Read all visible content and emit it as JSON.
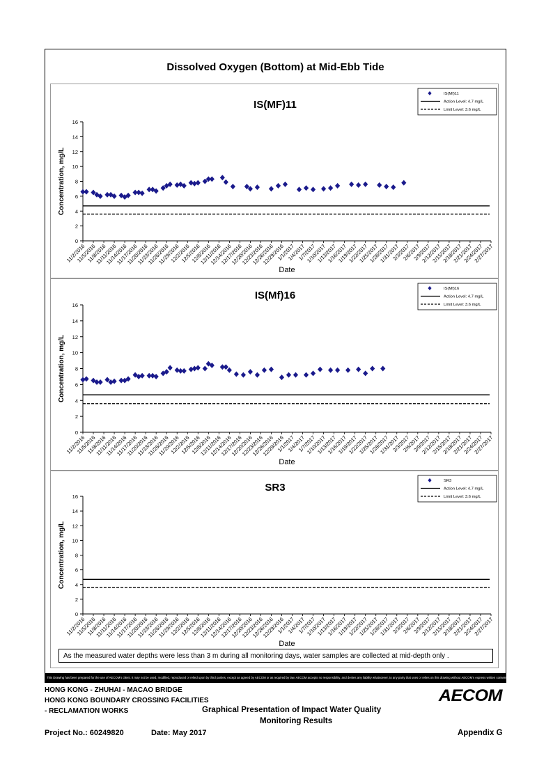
{
  "page": {
    "title": "Dissolved Oxygen (Bottom) at Mid-Ebb Tide",
    "note": "As the measured water depths were less than 3 m during all monitoring days, water samples are collected  at mid-depth only .",
    "disclaimer": "This Drawing has been prepared for the use of AECOM's client. It may not be used, modified, reproduced or relied upon by third parties, except as agreed by AECOM or as required by law. AECOM accepts no responsibility, and denies any liability whatsoever, to any party that uses or relies on this drawing without AECOM's express written consent."
  },
  "footer": {
    "line1": "HONG KONG - ZHUHAI - MACAO BRIDGE",
    "line2": "HONG KONG BOUNDARY CROSSING FACILITIES",
    "line3": "- RECLAMATION WORKS",
    "center1": "Graphical Presentation of Impact Water Quality",
    "center2": "Monitoring Results",
    "project": "Project No.: 60249820",
    "date": "Date: May 2017",
    "appendix": "Appendix G",
    "logo": "AECOM"
  },
  "chart_data": [
    {
      "type": "scatter",
      "title": "IS(MF)11",
      "xlabel": "Date",
      "ylabel": "Concentration, mg/L",
      "ylim": [
        0,
        16
      ],
      "yticks": [
        0,
        2,
        4,
        6,
        8,
        10,
        12,
        14,
        16
      ],
      "xlim": [
        "11/2/2016",
        "2/27/2017"
      ],
      "x_tick_labels": [
        "11/2/2016",
        "11/5/2016",
        "11/8/2016",
        "11/11/2016",
        "11/14/2016",
        "11/17/2016",
        "11/20/2016",
        "11/23/2016",
        "11/26/2016",
        "11/29/2016",
        "12/2/2016",
        "12/5/2016",
        "12/8/2016",
        "12/11/2016",
        "12/14/2016",
        "12/17/2016",
        "12/20/2016",
        "12/23/2016",
        "12/26/2016",
        "12/29/2016",
        "1/1/2017",
        "1/4/2017",
        "1/7/2017",
        "1/10/2017",
        "1/13/2017",
        "1/16/2017",
        "1/19/2017",
        "1/22/2017",
        "1/25/2017",
        "1/28/2017",
        "1/31/2017",
        "2/3/2017",
        "2/6/2017",
        "2/9/2017",
        "2/12/2017",
        "2/15/2017",
        "2/18/2017",
        "2/21/2017",
        "2/24/2017",
        "2/27/2017"
      ],
      "series": [
        {
          "name": "IS(Mf)11",
          "marker": "diamond",
          "color": "#1a1a8c",
          "points": [
            [
              "11/2/2016",
              6.6
            ],
            [
              "11/3/2016",
              6.6
            ],
            [
              "11/5/2016",
              6.5
            ],
            [
              "11/6/2016",
              6.2
            ],
            [
              "11/7/2016",
              6.0
            ],
            [
              "11/9/2016",
              6.2
            ],
            [
              "11/10/2016",
              6.2
            ],
            [
              "11/11/2016",
              6.0
            ],
            [
              "11/13/2016",
              6.1
            ],
            [
              "11/14/2016",
              5.9
            ],
            [
              "11/15/2016",
              6.1
            ],
            [
              "11/17/2016",
              6.5
            ],
            [
              "11/18/2016",
              6.5
            ],
            [
              "11/19/2016",
              6.4
            ],
            [
              "11/21/2016",
              6.9
            ],
            [
              "11/22/2016",
              6.9
            ],
            [
              "11/23/2016",
              6.7
            ],
            [
              "11/25/2016",
              7.1
            ],
            [
              "11/26/2016",
              7.4
            ],
            [
              "11/27/2016",
              7.6
            ],
            [
              "11/29/2016",
              7.5
            ],
            [
              "11/30/2016",
              7.6
            ],
            [
              "12/1/2016",
              7.4
            ],
            [
              "12/3/2016",
              7.8
            ],
            [
              "12/4/2016",
              7.7
            ],
            [
              "12/5/2016",
              7.8
            ],
            [
              "12/7/2016",
              8.0
            ],
            [
              "12/8/2016",
              8.3
            ],
            [
              "12/9/2016",
              8.3
            ],
            [
              "12/12/2016",
              8.5
            ],
            [
              "12/13/2016",
              7.9
            ],
            [
              "12/15/2016",
              7.3
            ],
            [
              "12/19/2016",
              7.3
            ],
            [
              "12/20/2016",
              7.0
            ],
            [
              "12/22/2016",
              7.2
            ],
            [
              "12/26/2016",
              7.0
            ],
            [
              "12/28/2016",
              7.4
            ],
            [
              "12/30/2016",
              7.6
            ],
            [
              "1/3/2017",
              6.9
            ],
            [
              "1/5/2017",
              7.1
            ],
            [
              "1/7/2017",
              6.9
            ],
            [
              "1/10/2017",
              7.0
            ],
            [
              "1/12/2017",
              7.1
            ],
            [
              "1/14/2017",
              7.4
            ],
            [
              "1/18/2017",
              7.6
            ],
            [
              "1/20/2017",
              7.5
            ],
            [
              "1/22/2017",
              7.6
            ],
            [
              "1/26/2017",
              7.5
            ],
            [
              "1/28/2017",
              7.3
            ],
            [
              "1/30/2017",
              7.2
            ],
            [
              "2/2/2017",
              7.8
            ]
          ]
        },
        {
          "name": "Action Level: 4.7 mg/L",
          "style": "solid",
          "value": 4.7
        },
        {
          "name": "Limit Level: 3.6 mg/L",
          "style": "dashed",
          "value": 3.6
        }
      ],
      "legend": "top-right"
    },
    {
      "type": "scatter",
      "title": "IS(Mf)16",
      "xlabel": "Date",
      "ylabel": "Concentration, mg/L",
      "ylim": [
        0,
        16
      ],
      "yticks": [
        0,
        2,
        4,
        6,
        8,
        10,
        12,
        14,
        16
      ],
      "xlim": [
        "11/2/2016",
        "2/27/2017"
      ],
      "x_tick_labels": [
        "11/2/2016",
        "11/5/2016",
        "11/8/2016",
        "11/11/2016",
        "11/14/2016",
        "11/17/2016",
        "11/20/2016",
        "11/23/2016",
        "11/26/2016",
        "11/29/2016",
        "12/2/2016",
        "12/5/2016",
        "12/8/2016",
        "12/11/2016",
        "12/14/2016",
        "12/17/2016",
        "12/20/2016",
        "12/23/2016",
        "12/26/2016",
        "12/29/2016",
        "1/1/2017",
        "1/4/2017",
        "1/7/2017",
        "1/10/2017",
        "1/13/2017",
        "1/16/2017",
        "1/19/2017",
        "1/22/2017",
        "1/25/2017",
        "1/28/2017",
        "1/31/2017",
        "2/3/2017",
        "2/6/2017",
        "2/9/2017",
        "2/12/2017",
        "2/15/2017",
        "2/18/2017",
        "2/21/2017",
        "2/24/2017",
        "2/27/2017"
      ],
      "series": [
        {
          "name": "IS(Mf)16",
          "marker": "diamond",
          "color": "#1a1a8c",
          "points": [
            [
              "11/2/2016",
              6.6
            ],
            [
              "11/3/2016",
              6.7
            ],
            [
              "11/5/2016",
              6.5
            ],
            [
              "11/6/2016",
              6.3
            ],
            [
              "11/7/2016",
              6.3
            ],
            [
              "11/9/2016",
              6.6
            ],
            [
              "11/10/2016",
              6.3
            ],
            [
              "11/11/2016",
              6.4
            ],
            [
              "11/13/2016",
              6.5
            ],
            [
              "11/14/2016",
              6.5
            ],
            [
              "11/15/2016",
              6.7
            ],
            [
              "11/17/2016",
              7.2
            ],
            [
              "11/18/2016",
              7.0
            ],
            [
              "11/19/2016",
              7.1
            ],
            [
              "11/21/2016",
              7.1
            ],
            [
              "11/22/2016",
              7.1
            ],
            [
              "11/23/2016",
              7.0
            ],
            [
              "11/25/2016",
              7.4
            ],
            [
              "11/26/2016",
              7.6
            ],
            [
              "11/27/2016",
              8.1
            ],
            [
              "11/29/2016",
              7.8
            ],
            [
              "11/30/2016",
              7.7
            ],
            [
              "12/1/2016",
              7.7
            ],
            [
              "12/3/2016",
              7.9
            ],
            [
              "12/4/2016",
              8.0
            ],
            [
              "12/5/2016",
              8.1
            ],
            [
              "12/7/2016",
              8.0
            ],
            [
              "12/8/2016",
              8.6
            ],
            [
              "12/9/2016",
              8.4
            ],
            [
              "12/12/2016",
              8.2
            ],
            [
              "12/13/2016",
              8.2
            ],
            [
              "12/14/2016",
              7.8
            ],
            [
              "12/16/2016",
              7.3
            ],
            [
              "12/18/2016",
              7.2
            ],
            [
              "12/20/2016",
              7.6
            ],
            [
              "12/22/2016",
              7.2
            ],
            [
              "12/24/2016",
              7.8
            ],
            [
              "12/26/2016",
              7.9
            ],
            [
              "12/29/2016",
              6.9
            ],
            [
              "12/31/2016",
              7.2
            ],
            [
              "1/2/2017",
              7.2
            ],
            [
              "1/5/2017",
              7.2
            ],
            [
              "1/7/2017",
              7.4
            ],
            [
              "1/9/2017",
              7.9
            ],
            [
              "1/12/2017",
              7.8
            ],
            [
              "1/14/2017",
              7.8
            ],
            [
              "1/17/2017",
              7.8
            ],
            [
              "1/20/2017",
              7.9
            ],
            [
              "1/22/2017",
              7.4
            ],
            [
              "1/24/2017",
              8.0
            ],
            [
              "1/27/2017",
              8.0
            ]
          ]
        },
        {
          "name": "Action Level: 4.7 mg/L",
          "style": "solid",
          "value": 4.7
        },
        {
          "name": "Limit Level: 3.6 mg/L",
          "style": "dashed",
          "value": 3.6
        }
      ],
      "legend": "top-right"
    },
    {
      "type": "scatter",
      "title": "SR3",
      "xlabel": "Date",
      "ylabel": "Concentration, mg/L",
      "ylim": [
        0,
        16
      ],
      "yticks": [
        0,
        2,
        4,
        6,
        8,
        10,
        12,
        14,
        16
      ],
      "xlim": [
        "11/2/2016",
        "2/27/2017"
      ],
      "x_tick_labels": [
        "11/2/2016",
        "11/5/2016",
        "11/8/2016",
        "11/11/2016",
        "11/14/2016",
        "11/17/2016",
        "11/20/2016",
        "11/23/2016",
        "11/26/2016",
        "11/29/2016",
        "12/2/2016",
        "12/5/2016",
        "12/8/2016",
        "12/11/2016",
        "12/14/2016",
        "12/17/2016",
        "12/20/2016",
        "12/23/2016",
        "12/26/2016",
        "12/29/2016",
        "1/1/2017",
        "1/4/2017",
        "1/7/2017",
        "1/10/2017",
        "1/13/2017",
        "1/16/2017",
        "1/19/2017",
        "1/22/2017",
        "1/25/2017",
        "1/28/2017",
        "1/31/2017",
        "2/3/2017",
        "2/6/2017",
        "2/9/2017",
        "2/12/2017",
        "2/15/2017",
        "2/18/2017",
        "2/21/2017",
        "2/24/2017",
        "2/27/2017"
      ],
      "series": [
        {
          "name": "SR3",
          "marker": "diamond",
          "color": "#1a1a8c",
          "points": []
        },
        {
          "name": "Action Level: 4.7 mg/L",
          "style": "solid",
          "value": 4.7
        },
        {
          "name": "Limit Level: 3.6 mg/L",
          "style": "dashed",
          "value": 3.6
        }
      ],
      "legend": "top-right"
    }
  ]
}
